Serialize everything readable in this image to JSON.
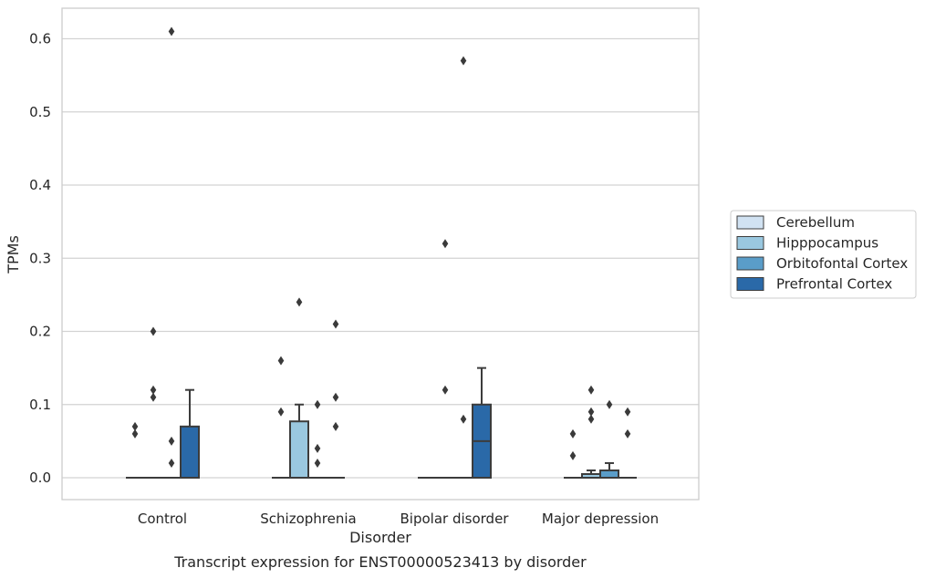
{
  "chart_data": {
    "type": "box",
    "title": "",
    "caption": "Transcript expression for ENST00000523413 by disorder",
    "xlabel": "Disorder",
    "ylabel": "TPMs",
    "ylim": [
      -0.03,
      0.64
    ],
    "yticks": [
      "0.0",
      "0.1",
      "0.2",
      "0.3",
      "0.4",
      "0.5",
      "0.6"
    ],
    "grid": "horizontal",
    "legend_position": "right",
    "categories": [
      "Control",
      "Schizophrenia",
      "Bipolar disorder",
      "Major depression"
    ],
    "series": [
      {
        "name": "Cerebellum",
        "color": "#d1e2f2",
        "boxes": [
          {
            "q1": 0,
            "median": 0,
            "q3": 0,
            "whisker_low": 0,
            "whisker_high": 0,
            "outliers": [
              0.07,
              0.06
            ]
          },
          {
            "q1": 0,
            "median": 0,
            "q3": 0,
            "whisker_low": 0,
            "whisker_high": 0,
            "outliers": [
              0.16,
              0.09
            ]
          },
          {
            "q1": 0,
            "median": 0,
            "q3": 0,
            "whisker_low": 0,
            "whisker_high": 0,
            "outliers": []
          },
          {
            "q1": 0,
            "median": 0,
            "q3": 0,
            "whisker_low": 0,
            "whisker_high": 0,
            "outliers": [
              0.06,
              0.03
            ]
          }
        ]
      },
      {
        "name": "Hipppocampus",
        "color": "#9ac8e0",
        "boxes": [
          {
            "q1": 0,
            "median": 0,
            "q3": 0,
            "whisker_low": 0,
            "whisker_high": 0,
            "outliers": [
              0.2,
              0.12,
              0.11
            ]
          },
          {
            "q1": 0,
            "median": 0,
            "q3": 0.077,
            "whisker_low": 0,
            "whisker_high": 0.1,
            "outliers": [
              0.24
            ]
          },
          {
            "q1": 0,
            "median": 0,
            "q3": 0,
            "whisker_low": 0,
            "whisker_high": 0,
            "outliers": [
              0.32,
              0.12
            ]
          },
          {
            "q1": 0,
            "median": 0,
            "q3": 0.005,
            "whisker_low": 0,
            "whisker_high": 0.01,
            "outliers": [
              0.12,
              0.09,
              0.08
            ]
          }
        ]
      },
      {
        "name": "Orbitofontal Cortex",
        "color": "#5a9dc9",
        "boxes": [
          {
            "q1": 0,
            "median": 0,
            "q3": 0,
            "whisker_low": 0,
            "whisker_high": 0,
            "outliers": [
              0.61,
              0.05,
              0.02
            ]
          },
          {
            "q1": 0,
            "median": 0,
            "q3": 0,
            "whisker_low": 0,
            "whisker_high": 0,
            "outliers": [
              0.1,
              0.04,
              0.02
            ]
          },
          {
            "q1": 0,
            "median": 0,
            "q3": 0,
            "whisker_low": 0,
            "whisker_high": 0,
            "outliers": [
              0.57,
              0.08
            ]
          },
          {
            "q1": 0,
            "median": 0,
            "q3": 0.01,
            "whisker_low": 0,
            "whisker_high": 0.02,
            "outliers": [
              0.1
            ]
          }
        ]
      },
      {
        "name": "Prefrontal Cortex",
        "color": "#2a69a8",
        "boxes": [
          {
            "q1": 0,
            "median": 0,
            "q3": 0.07,
            "whisker_low": 0,
            "whisker_high": 0.12,
            "outliers": []
          },
          {
            "q1": 0,
            "median": 0,
            "q3": 0,
            "whisker_low": 0,
            "whisker_high": 0,
            "outliers": [
              0.21,
              0.11,
              0.07
            ]
          },
          {
            "q1": 0,
            "median": 0.05,
            "q3": 0.1,
            "whisker_low": 0,
            "whisker_high": 0.15,
            "outliers": []
          },
          {
            "q1": 0,
            "median": 0,
            "q3": 0,
            "whisker_low": 0,
            "whisker_high": 0,
            "outliers": [
              0.09,
              0.06
            ]
          }
        ]
      }
    ]
  }
}
